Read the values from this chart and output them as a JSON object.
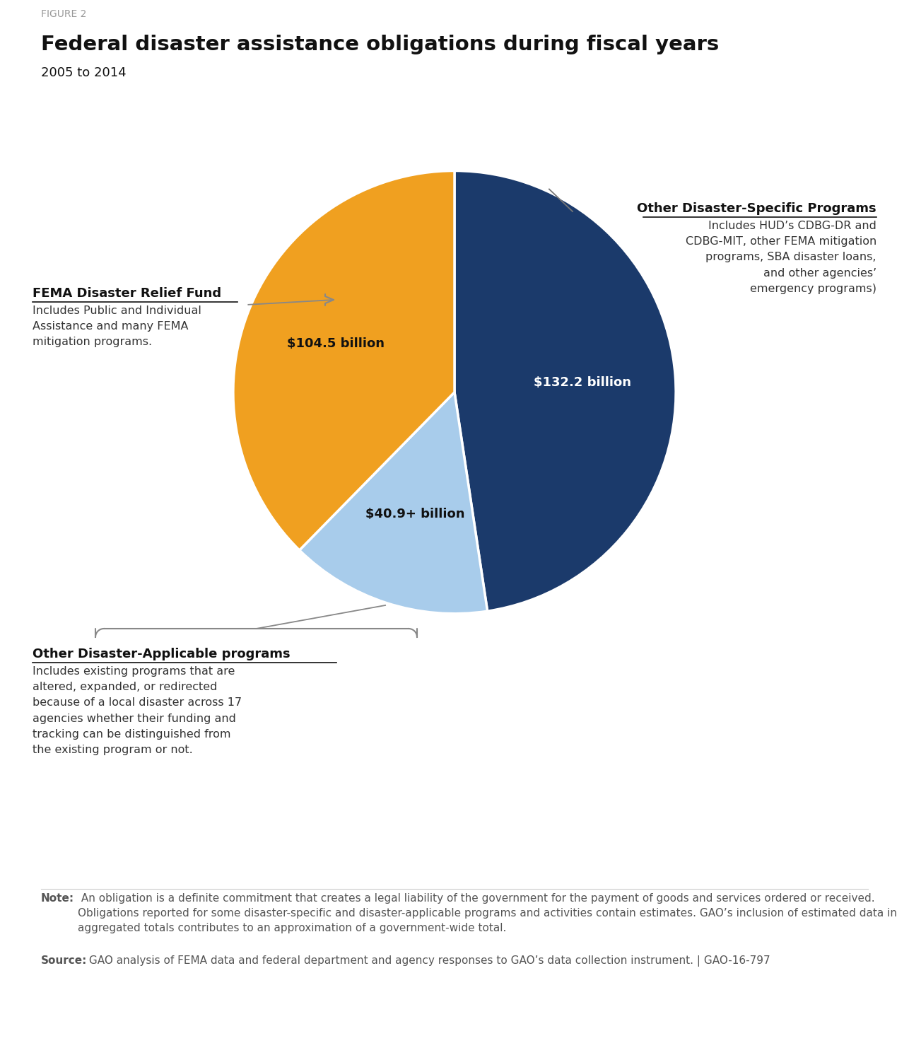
{
  "figure_label": "FIGURE 2",
  "title": "Federal disaster assistance obligations during fiscal years",
  "subtitle": "2005 to 2014",
  "slice_values": [
    132.2,
    104.5,
    40.9
  ],
  "slice_labels_inside": [
    "$132.2 billion",
    "$104.5 billion",
    "$40.9+ billion"
  ],
  "slice_colors": [
    "#1b3a6b",
    "#f0a020",
    "#a8cceb"
  ],
  "slice_text_colors": [
    "#ffffff",
    "#111111",
    "#111111"
  ],
  "ann_right_title": "Other Disaster-Specific Programs",
  "ann_right_desc": "Includes HUD’s CDBG-DR and\nCDBG-MIT, other FEMA mitigation\nprograms, SBA disaster loans,\nand other agencies’\nemergency programs)",
  "ann_left_title": "FEMA Disaster Relief Fund",
  "ann_left_desc": "Includes Public and Individual\nAssistance and many FEMA\nmitigation programs.",
  "ann_bottom_title": "Other Disaster-Applicable programs",
  "ann_bottom_desc": "Includes existing programs that are\naltered, expanded, or redirected\nbecause of a local disaster across 17\nagencies whether their funding and\ntracking can be distinguished from\nthe existing program or not.",
  "note_bold": "Note:",
  "note_text": " An obligation is a definite commitment that creates a legal liability of the government for the payment of goods and services ordered or received. Obligations reported for some disaster-specific and disaster-applicable programs and activities contain estimates. GAO’s inclusion of estimated data in aggregated totals contributes to an approximation of a government-wide total.",
  "source_bold": "Source:",
  "source_text": " GAO analysis of FEMA data and federal department and agency responses to GAO’s data collection instrument. | GAO-16-797",
  "bg_color": "#ffffff"
}
